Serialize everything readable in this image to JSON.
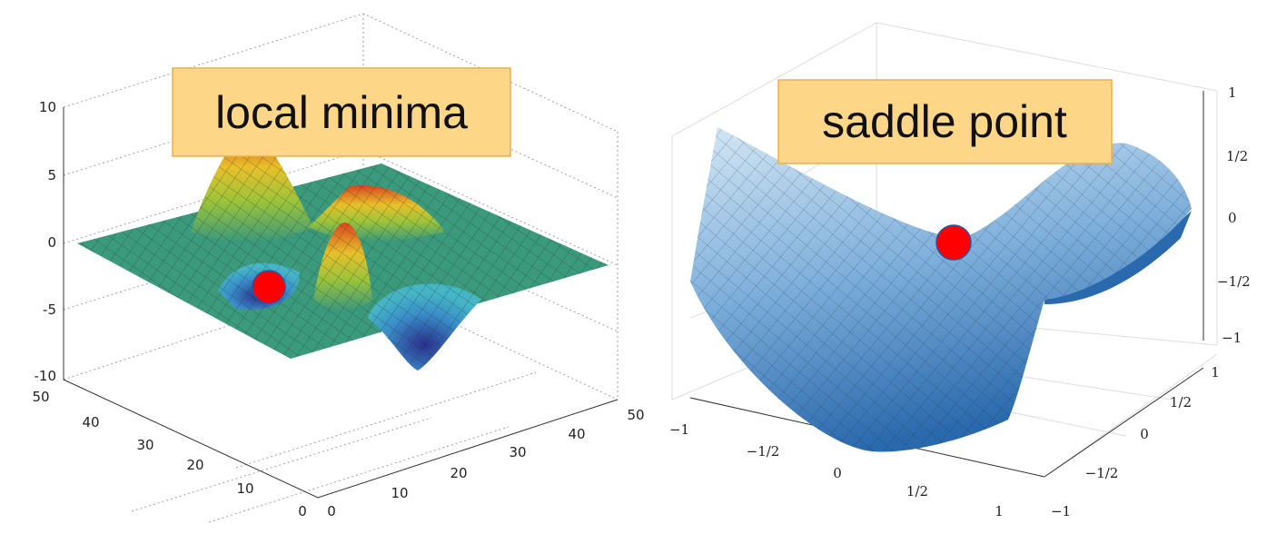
{
  "panels": [
    {
      "label": "local minima",
      "z_ticks": [
        "10",
        "5",
        "0",
        "-5",
        "-10"
      ],
      "y_ticks": [
        "50",
        "40",
        "30",
        "20",
        "10",
        "0"
      ],
      "x_ticks": [
        "0",
        "10",
        "20",
        "30",
        "40",
        "50"
      ]
    },
    {
      "label": "saddle point",
      "z_ticks": [
        "1",
        "1/2",
        "0",
        "−1/2",
        "−1"
      ],
      "x_ticks": [
        "−1",
        "−1/2",
        "0",
        "1/2",
        "1"
      ],
      "y_ticks": [
        "1",
        "1/2",
        "0",
        "−1/2",
        "−1"
      ]
    }
  ]
}
